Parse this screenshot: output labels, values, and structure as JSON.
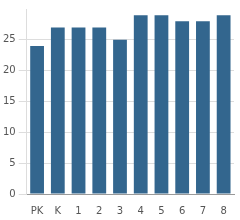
{
  "chart_data": {
    "type": "bar",
    "categories": [
      "PK",
      "K",
      "1",
      "2",
      "3",
      "4",
      "5",
      "6",
      "7",
      "8"
    ],
    "values": [
      24,
      27,
      27,
      27,
      25,
      29,
      29,
      28,
      28,
      29
    ],
    "color": "#33668e",
    "ylim": [
      0,
      30
    ],
    "yticks": [
      0,
      5,
      10,
      15,
      20,
      25
    ],
    "grid": true
  }
}
